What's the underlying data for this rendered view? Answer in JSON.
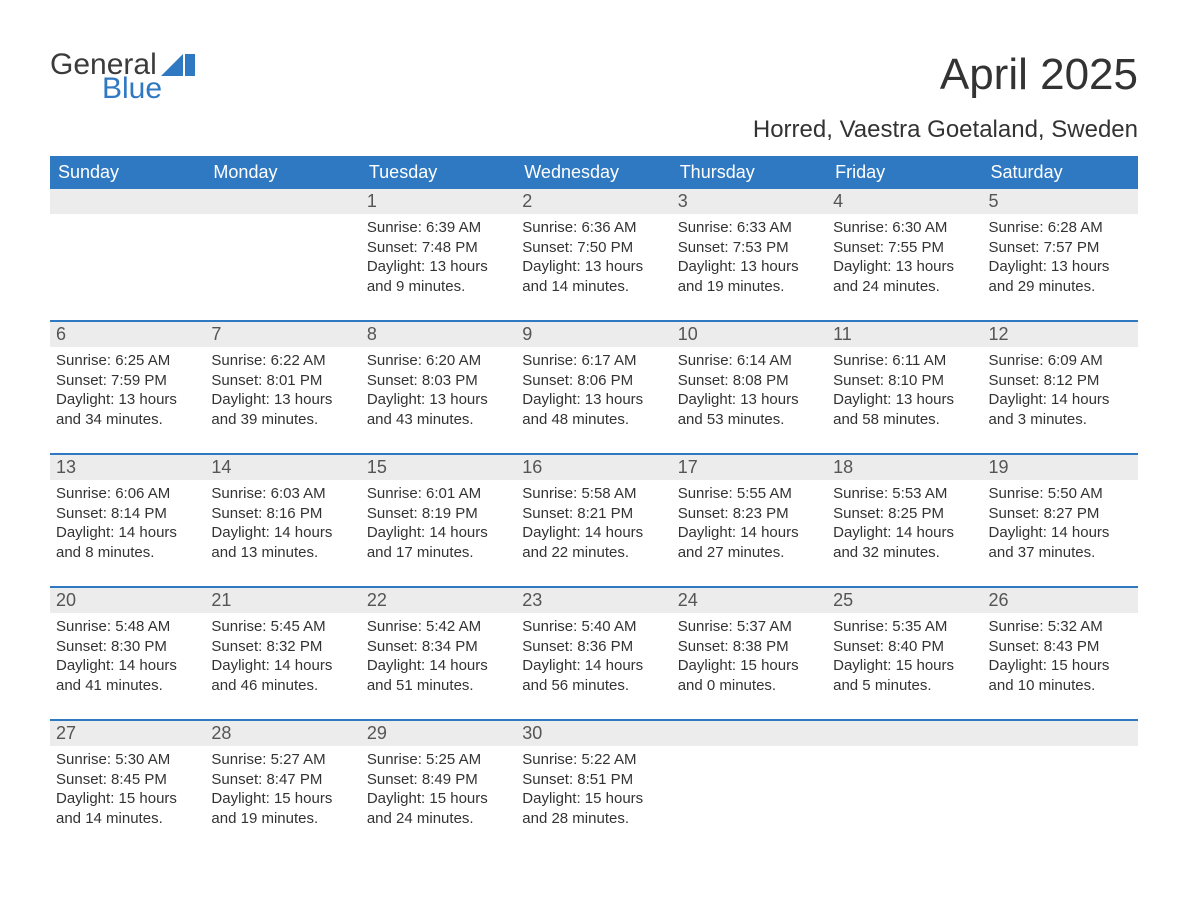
{
  "logo": {
    "top": "General",
    "bottom": "Blue"
  },
  "title": "April 2025",
  "subtitle": "Horred, Vaestra Goetaland, Sweden",
  "colors": {
    "header_bg": "#2f79c2",
    "header_text": "#ffffff",
    "daynum_bg": "#ececec",
    "week_border": "#2f79c2",
    "text": "#333333",
    "logo_blue": "#2f79c2"
  },
  "day_headers": [
    "Sunday",
    "Monday",
    "Tuesday",
    "Wednesday",
    "Thursday",
    "Friday",
    "Saturday"
  ],
  "weeks": [
    [
      null,
      null,
      {
        "n": "1",
        "sr": "6:39 AM",
        "ss": "7:48 PM",
        "dl": "13 hours and 9 minutes."
      },
      {
        "n": "2",
        "sr": "6:36 AM",
        "ss": "7:50 PM",
        "dl": "13 hours and 14 minutes."
      },
      {
        "n": "3",
        "sr": "6:33 AM",
        "ss": "7:53 PM",
        "dl": "13 hours and 19 minutes."
      },
      {
        "n": "4",
        "sr": "6:30 AM",
        "ss": "7:55 PM",
        "dl": "13 hours and 24 minutes."
      },
      {
        "n": "5",
        "sr": "6:28 AM",
        "ss": "7:57 PM",
        "dl": "13 hours and 29 minutes."
      }
    ],
    [
      {
        "n": "6",
        "sr": "6:25 AM",
        "ss": "7:59 PM",
        "dl": "13 hours and 34 minutes."
      },
      {
        "n": "7",
        "sr": "6:22 AM",
        "ss": "8:01 PM",
        "dl": "13 hours and 39 minutes."
      },
      {
        "n": "8",
        "sr": "6:20 AM",
        "ss": "8:03 PM",
        "dl": "13 hours and 43 minutes."
      },
      {
        "n": "9",
        "sr": "6:17 AM",
        "ss": "8:06 PM",
        "dl": "13 hours and 48 minutes."
      },
      {
        "n": "10",
        "sr": "6:14 AM",
        "ss": "8:08 PM",
        "dl": "13 hours and 53 minutes."
      },
      {
        "n": "11",
        "sr": "6:11 AM",
        "ss": "8:10 PM",
        "dl": "13 hours and 58 minutes."
      },
      {
        "n": "12",
        "sr": "6:09 AM",
        "ss": "8:12 PM",
        "dl": "14 hours and 3 minutes."
      }
    ],
    [
      {
        "n": "13",
        "sr": "6:06 AM",
        "ss": "8:14 PM",
        "dl": "14 hours and 8 minutes."
      },
      {
        "n": "14",
        "sr": "6:03 AM",
        "ss": "8:16 PM",
        "dl": "14 hours and 13 minutes."
      },
      {
        "n": "15",
        "sr": "6:01 AM",
        "ss": "8:19 PM",
        "dl": "14 hours and 17 minutes."
      },
      {
        "n": "16",
        "sr": "5:58 AM",
        "ss": "8:21 PM",
        "dl": "14 hours and 22 minutes."
      },
      {
        "n": "17",
        "sr": "5:55 AM",
        "ss": "8:23 PM",
        "dl": "14 hours and 27 minutes."
      },
      {
        "n": "18",
        "sr": "5:53 AM",
        "ss": "8:25 PM",
        "dl": "14 hours and 32 minutes."
      },
      {
        "n": "19",
        "sr": "5:50 AM",
        "ss": "8:27 PM",
        "dl": "14 hours and 37 minutes."
      }
    ],
    [
      {
        "n": "20",
        "sr": "5:48 AM",
        "ss": "8:30 PM",
        "dl": "14 hours and 41 minutes."
      },
      {
        "n": "21",
        "sr": "5:45 AM",
        "ss": "8:32 PM",
        "dl": "14 hours and 46 minutes."
      },
      {
        "n": "22",
        "sr": "5:42 AM",
        "ss": "8:34 PM",
        "dl": "14 hours and 51 minutes."
      },
      {
        "n": "23",
        "sr": "5:40 AM",
        "ss": "8:36 PM",
        "dl": "14 hours and 56 minutes."
      },
      {
        "n": "24",
        "sr": "5:37 AM",
        "ss": "8:38 PM",
        "dl": "15 hours and 0 minutes."
      },
      {
        "n": "25",
        "sr": "5:35 AM",
        "ss": "8:40 PM",
        "dl": "15 hours and 5 minutes."
      },
      {
        "n": "26",
        "sr": "5:32 AM",
        "ss": "8:43 PM",
        "dl": "15 hours and 10 minutes."
      }
    ],
    [
      {
        "n": "27",
        "sr": "5:30 AM",
        "ss": "8:45 PM",
        "dl": "15 hours and 14 minutes."
      },
      {
        "n": "28",
        "sr": "5:27 AM",
        "ss": "8:47 PM",
        "dl": "15 hours and 19 minutes."
      },
      {
        "n": "29",
        "sr": "5:25 AM",
        "ss": "8:49 PM",
        "dl": "15 hours and 24 minutes."
      },
      {
        "n": "30",
        "sr": "5:22 AM",
        "ss": "8:51 PM",
        "dl": "15 hours and 28 minutes."
      },
      null,
      null,
      null
    ]
  ],
  "labels": {
    "sunrise": "Sunrise: ",
    "sunset": "Sunset: ",
    "daylight": "Daylight: "
  }
}
